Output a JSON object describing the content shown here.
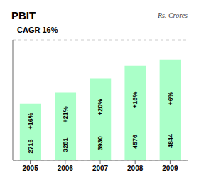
{
  "chart_data": {
    "type": "bar",
    "title": "PBIT",
    "subtitle": "Rs. Crores",
    "categories": [
      "2005",
      "2006",
      "2007",
      "2008",
      "2009"
    ],
    "values": [
      2716,
      3281,
      3930,
      4576,
      4844
    ],
    "color": "#aaffc8",
    "ylim": [
      0,
      5800
    ],
    "yticks": [
      0,
      1000,
      2000,
      3000,
      4000,
      5000
    ],
    "grid": true,
    "data_labels": true,
    "tick_labels": "x",
    "annotations": [
      {
        "text": "CAGR 16%"
      },
      {
        "text": "+16%",
        "category": "2005"
      },
      {
        "text": "+21%",
        "category": "2006"
      },
      {
        "text": "+20%",
        "category": "2007"
      },
      {
        "text": "+16%",
        "category": "2008"
      },
      {
        "text": "+6%",
        "category": "2009"
      }
    ]
  }
}
